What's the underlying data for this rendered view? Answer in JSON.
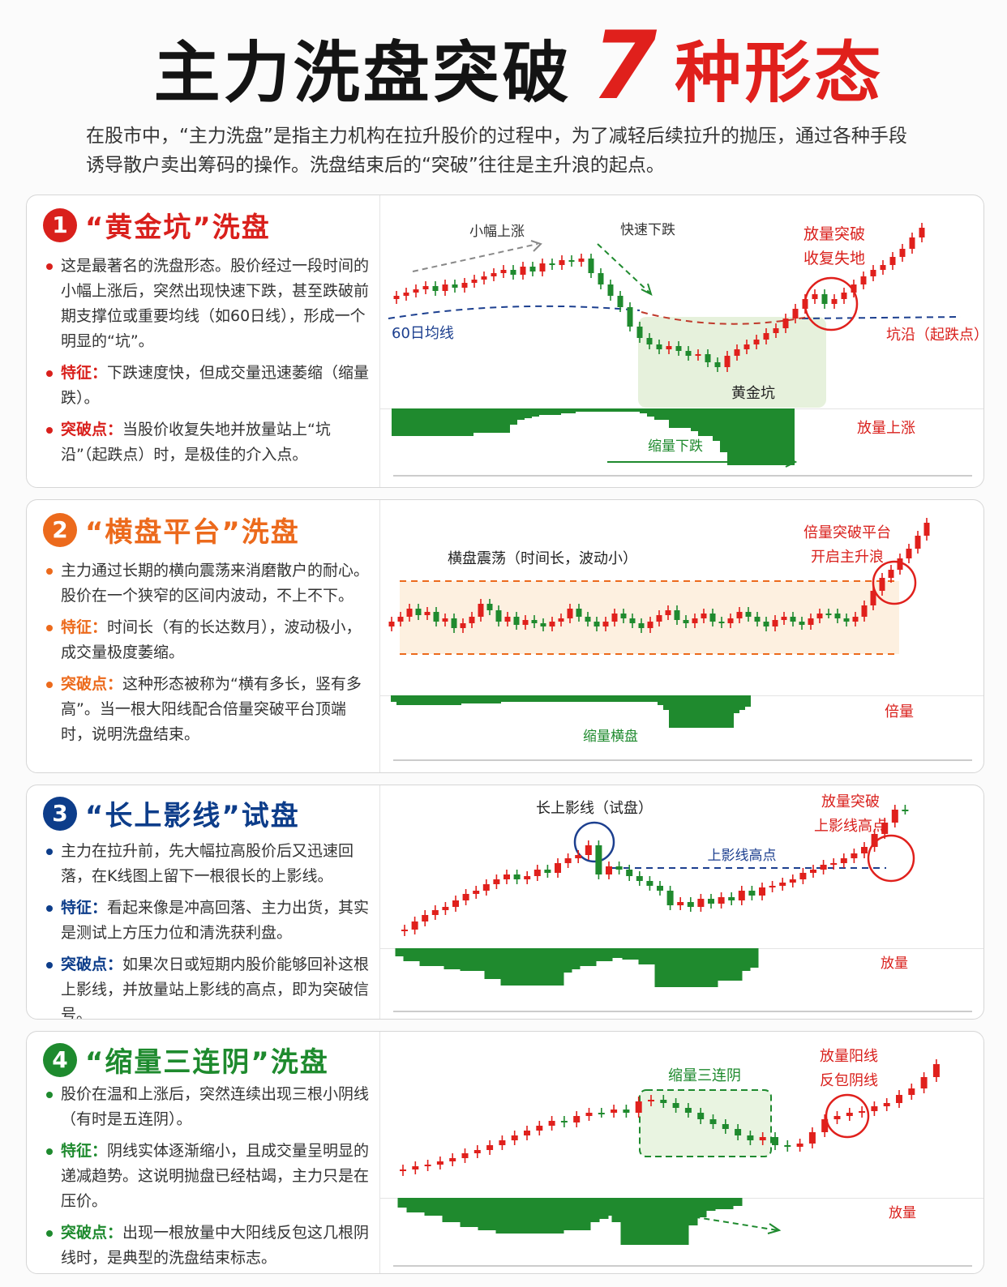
{
  "title": {
    "part1": "主力洗盘突破",
    "number": "7",
    "part2": "种形态"
  },
  "intro": "在股市中，“主力洗盘”是指主力机构在拉升股价的过程中，为了减轻后续拉升的抛压，通过各种手段诱导散户卖出筹码的操作。洗盘结束后的“突破”往往是主升浪的起点。",
  "colors": {
    "up": "#e0201c",
    "down": "#1f8a2e",
    "p1": "#d9201c",
    "p2": "#ec6a1c",
    "p3": "#0d3d8a",
    "p4": "#1e8a2e"
  },
  "panels": [
    {
      "num": "1",
      "heading": "“黄金坑”洗盘",
      "bullets": [
        {
          "key": "",
          "text": "这是最著名的洗盘形态。股价经过一段时间的小幅上涨后，突然出现快速下跌，甚至跌破前期支撑位或重要均线（如60日线），形成一个明显的“坑”。"
        },
        {
          "key": "特征：",
          "text": "下跌速度快，但成交量迅速萎缩（缩量跌）。"
        },
        {
          "key": "突破点：",
          "text": "当股价收复失地并放量站上“坑沿”（起跌点）时，是极佳的介入点。"
        }
      ],
      "labels": {
        "rise": "小幅上涨",
        "drop": "快速下跌",
        "break": "放量突破",
        "recover": "收复失地",
        "ma": "60日均线",
        "pit": "黄金坑",
        "rim": "坑沿（起跌点）",
        "vol_shrink": "缩量下跌",
        "vol_up": "放量上涨"
      }
    },
    {
      "num": "2",
      "heading": "“横盘平台”洗盘",
      "bullets": [
        {
          "key": "",
          "text": "主力通过长期的横向震荡来消磨散户的耐心。股价在一个狭窄的区间内波动，不上不下。"
        },
        {
          "key": "特征：",
          "text": "时间长（有的长达数月），波动极小，成交量极度萎缩。"
        },
        {
          "key": "突破点：",
          "text": "这种形态被称为“横有多长，竖有多高”。当一根大阳线配合倍量突破平台顶端时，说明洗盘结束。"
        }
      ],
      "labels": {
        "range": "横盘震荡（时间长，波动小）",
        "break1": "倍量突破平台",
        "break2": "开启主升浪",
        "vol_flat": "缩量横盘",
        "vol_double": "倍量"
      }
    },
    {
      "num": "3",
      "heading": "“长上影线”试盘",
      "bullets": [
        {
          "key": "",
          "text": "主力在拉升前，先大幅拉高股价后又迅速回落，在K线图上留下一根很长的上影线。"
        },
        {
          "key": "特征：",
          "text": "看起来像是冲高回落、主力出货，其实是测试上方压力位和清洗获利盘。"
        },
        {
          "key": "突破点：",
          "text": "如果次日或短期内股价能够回补这根上影线，并放量站上影线的高点，即为突破信号。"
        }
      ],
      "labels": {
        "shadow": "长上影线（试盘）",
        "break1": "放量突破",
        "break2": "上影线高点",
        "high": "上影线高点",
        "vol": "放量"
      }
    },
    {
      "num": "4",
      "heading": "“缩量三连阴”洗盘",
      "bullets": [
        {
          "key": "",
          "text": "股价在温和上涨后，突然连续出现三根小阴线（有时是五连阴）。"
        },
        {
          "key": "特征：",
          "text": "阴线实体逐渐缩小，且成交量呈明显的递减趋势。这说明抛盘已经枯竭，主力只是在压价。"
        },
        {
          "key": "突破点：",
          "text": "出现一根放量中大阳线反包这几根阴线时，是典型的洗盘结束标志。"
        }
      ],
      "labels": {
        "three": "缩量三连阴",
        "engulf1": "放量阳线",
        "engulf2": "反包阴线",
        "vol": "放量"
      }
    }
  ]
}
